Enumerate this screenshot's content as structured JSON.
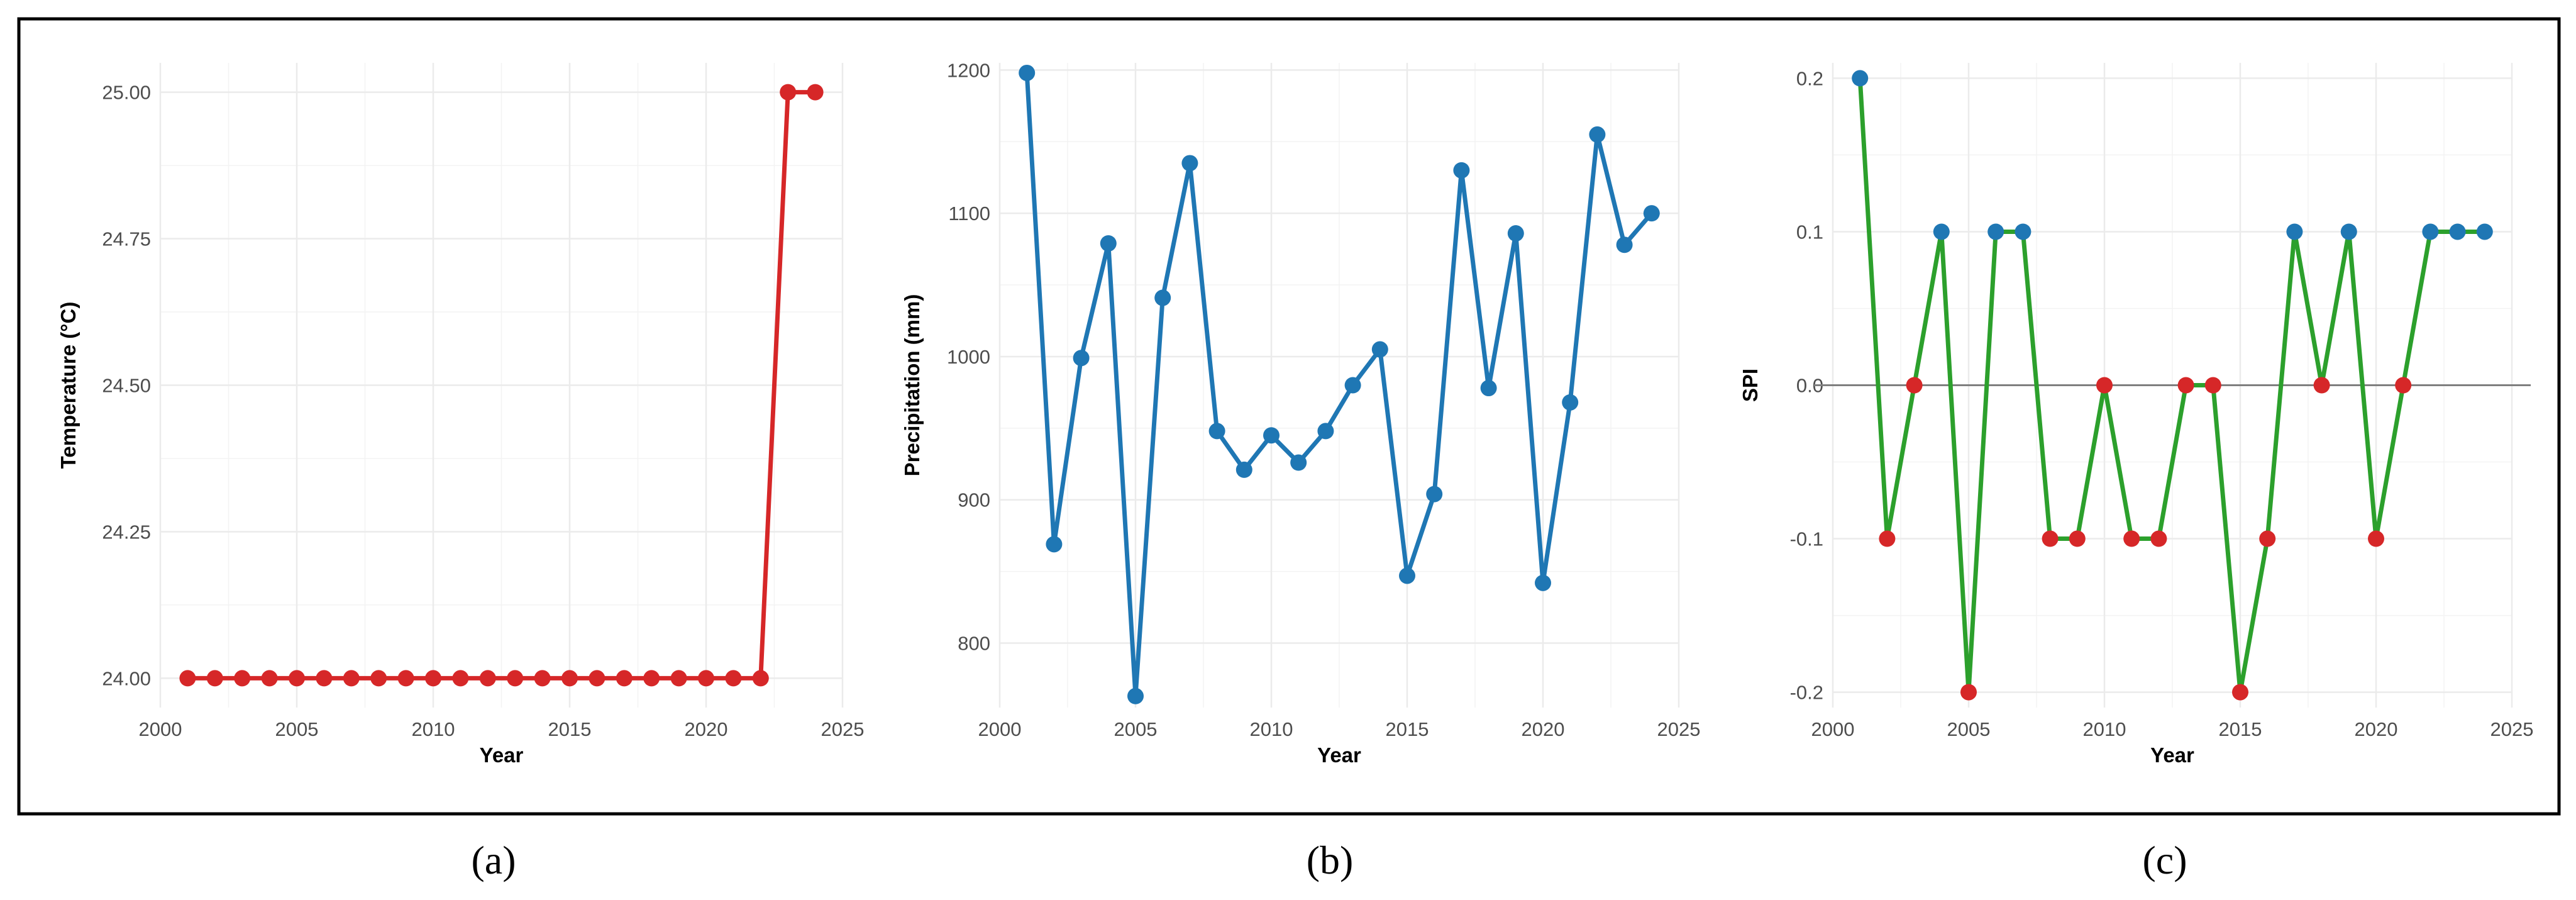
{
  "panel_labels": [
    "(a)",
    "(b)",
    "(c)"
  ],
  "chart_data": [
    {
      "type": "line",
      "title": "",
      "xlabel": "Year",
      "ylabel": "Temperature (°C)",
      "xlim": [
        2000,
        2025
      ],
      "ylim": [
        23.95,
        25.05
      ],
      "x_ticks": [
        2000,
        2005,
        2010,
        2015,
        2020,
        2025
      ],
      "y_ticks": [
        24.0,
        24.25,
        24.5,
        24.75,
        25.0
      ],
      "y_tick_labels": [
        "24.00",
        "24.25",
        "24.50",
        "24.75",
        "25.00"
      ],
      "grid": true,
      "line_color": "#d62728",
      "x": [
        2001,
        2002,
        2003,
        2004,
        2005,
        2006,
        2007,
        2008,
        2009,
        2010,
        2011,
        2012,
        2013,
        2014,
        2015,
        2016,
        2017,
        2018,
        2019,
        2020,
        2021,
        2022,
        2023,
        2024
      ],
      "series": [
        {
          "values": [
            24,
            24,
            24,
            24,
            24,
            24,
            24,
            24,
            24,
            24,
            24,
            24,
            24,
            24,
            24,
            24,
            24,
            24,
            24,
            24,
            24,
            24,
            25,
            25
          ],
          "point_colors": [
            "#d62728",
            "#d62728",
            "#d62728",
            "#d62728",
            "#d62728",
            "#d62728",
            "#d62728",
            "#d62728",
            "#d62728",
            "#d62728",
            "#d62728",
            "#d62728",
            "#d62728",
            "#d62728",
            "#d62728",
            "#d62728",
            "#d62728",
            "#d62728",
            "#d62728",
            "#d62728",
            "#d62728",
            "#d62728",
            "#d62728",
            "#d62728"
          ]
        }
      ]
    },
    {
      "type": "line",
      "title": "",
      "xlabel": "Year",
      "ylabel": "Precipitation (mm)",
      "xlim": [
        2000,
        2025
      ],
      "ylim": [
        755,
        1205
      ],
      "x_ticks": [
        2000,
        2005,
        2010,
        2015,
        2020,
        2025
      ],
      "y_ticks": [
        800,
        900,
        1000,
        1100,
        1200
      ],
      "y_tick_labels": [
        "800",
        "900",
        "1000",
        "1100",
        "1200"
      ],
      "grid": true,
      "line_color": "#1f77b4",
      "x": [
        2001,
        2002,
        2003,
        2004,
        2005,
        2006,
        2007,
        2008,
        2009,
        2010,
        2011,
        2012,
        2013,
        2014,
        2015,
        2016,
        2017,
        2018,
        2019,
        2020,
        2021,
        2022,
        2023,
        2024
      ],
      "series": [
        {
          "values": [
            1198,
            869,
            999,
            1079,
            763,
            1041,
            1135,
            948,
            921,
            945,
            926,
            948,
            980,
            1005,
            847,
            904,
            1130,
            978,
            1086,
            842,
            968,
            1155,
            1078,
            1100
          ],
          "point_colors": [
            "#1f77b4",
            "#1f77b4",
            "#1f77b4",
            "#1f77b4",
            "#1f77b4",
            "#1f77b4",
            "#1f77b4",
            "#1f77b4",
            "#1f77b4",
            "#1f77b4",
            "#1f77b4",
            "#1f77b4",
            "#1f77b4",
            "#1f77b4",
            "#1f77b4",
            "#1f77b4",
            "#1f77b4",
            "#1f77b4",
            "#1f77b4",
            "#1f77b4",
            "#1f77b4",
            "#1f77b4",
            "#1f77b4",
            "#1f77b4"
          ]
        }
      ]
    },
    {
      "type": "line",
      "title": "",
      "xlabel": "Year",
      "ylabel": "SPI",
      "xlim": [
        2000,
        2025
      ],
      "ylim": [
        -0.21,
        0.21
      ],
      "x_ticks": [
        2000,
        2005,
        2010,
        2015,
        2020,
        2025
      ],
      "y_ticks": [
        -0.2,
        -0.1,
        0.0,
        0.1,
        0.2
      ],
      "y_tick_labels": [
        "-0.2",
        "-0.1",
        "0.0",
        "0.1",
        "0.2"
      ],
      "grid": true,
      "reference_line": 0,
      "line_color": "#2ca02c",
      "x": [
        2001,
        2002,
        2003,
        2004,
        2005,
        2006,
        2007,
        2008,
        2009,
        2010,
        2011,
        2012,
        2013,
        2014,
        2015,
        2016,
        2017,
        2018,
        2019,
        2020,
        2021,
        2022,
        2023,
        2024
      ],
      "series": [
        {
          "values": [
            0.2,
            -0.1,
            0.0,
            0.1,
            -0.2,
            0.1,
            0.1,
            -0.1,
            -0.1,
            0.0,
            -0.1,
            -0.1,
            0.0,
            0.0,
            -0.2,
            -0.1,
            0.1,
            0.0,
            0.1,
            -0.1,
            0.0,
            0.1,
            0.1,
            0.1
          ],
          "point_colors": [
            "#1f77b4",
            "#d62728",
            "#d62728",
            "#1f77b4",
            "#d62728",
            "#1f77b4",
            "#1f77b4",
            "#d62728",
            "#d62728",
            "#d62728",
            "#d62728",
            "#d62728",
            "#d62728",
            "#d62728",
            "#d62728",
            "#d62728",
            "#1f77b4",
            "#d62728",
            "#1f77b4",
            "#d62728",
            "#d62728",
            "#1f77b4",
            "#1f77b4",
            "#1f77b4"
          ]
        }
      ]
    }
  ]
}
